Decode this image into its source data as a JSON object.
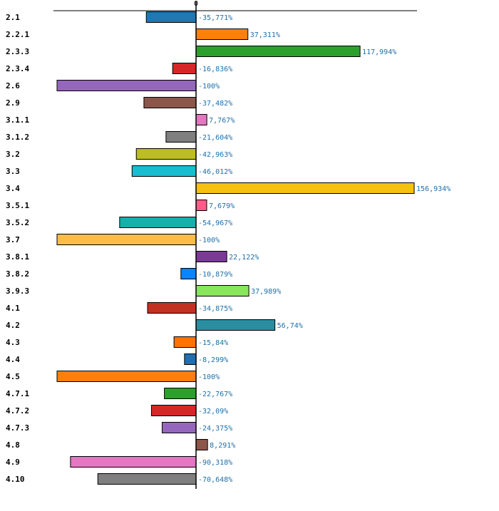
{
  "chart_data": {
    "type": "bar",
    "orientation": "horizontal",
    "title": "",
    "xlabel": "",
    "ylabel": "",
    "xlim": [
      -100,
      156.934
    ],
    "zero_tick_label": "0",
    "grid": false,
    "categories": [
      "2.1",
      "2.2.1",
      "2.3.3",
      "2.3.4",
      "2.6",
      "2.9",
      "3.1.1",
      "3.1.2",
      "3.2",
      "3.3",
      "3.4",
      "3.5.1",
      "3.5.2",
      "3.7",
      "3.8.1",
      "3.8.2",
      "3.9.3",
      "4.1",
      "4.2",
      "4.3",
      "4.4",
      "4.5",
      "4.7.1",
      "4.7.2",
      "4.7.3",
      "4.8",
      "4.9",
      "4.10"
    ],
    "values": [
      -35.771,
      37.311,
      117.994,
      -16.836,
      -100,
      -37.482,
      7.767,
      -21.604,
      -42.963,
      -46.012,
      156.934,
      7.679,
      -54.967,
      -100,
      22.122,
      -10.879,
      37.989,
      -34.875,
      56.74,
      -15.84,
      -8.299,
      -100,
      -22.767,
      -32.09,
      -24.375,
      8.291,
      -90.318,
      -70.648
    ],
    "value_labels": [
      "-35,771%",
      "37,311%",
      "117,994%",
      "-16,836%",
      "-100%",
      "-37,482%",
      "7,767%",
      "-21,604%",
      "-42,963%",
      "-46,012%",
      "156,934%",
      "7,679%",
      "-54,967%",
      "-100%",
      "22,122%",
      "-10,879%",
      "37,989%",
      "-34,875%",
      "56,74%",
      "-15,84%",
      "-8,299%",
      "-100%",
      "-22,767%",
      "-32,09%",
      "-24,375%",
      "8,291%",
      "-90,318%",
      "-70,648%"
    ],
    "colors": [
      "#1f77b4",
      "#ff7f0e",
      "#2ca02c",
      "#d62728",
      "#9467bd",
      "#8c564b",
      "#e377c2",
      "#7f7f7f",
      "#bcbd22",
      "#17becf",
      "#f5c211",
      "#ff5c8a",
      "#14b0aa",
      "#fbbd48",
      "#7b3a96",
      "#0a84ff",
      "#8ae65a",
      "#c0321f",
      "#2a8ea0",
      "#ff7300",
      "#1f6fb4",
      "#ff7f0e",
      "#2ca02c",
      "#d62728",
      "#9467bd",
      "#8c564b",
      "#e377c2",
      "#7f7f7f"
    ]
  }
}
